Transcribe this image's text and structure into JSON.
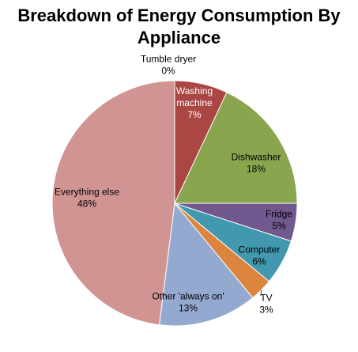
{
  "title_lines": [
    "Breakdown of Energy Consumption By",
    "Appliance"
  ],
  "chart_data": {
    "type": "pie",
    "title": "Breakdown of Energy Consumption By Appliance",
    "start_angle_deg": 0,
    "direction": "clockwise",
    "slices": [
      {
        "label": "Tumble dryer",
        "label_lines": [
          "Tumble dryer"
        ],
        "value_text": "0%",
        "value": 0,
        "color": "#4F81BD"
      },
      {
        "label": "Washing machine",
        "label_lines": [
          "Washing",
          "machine"
        ],
        "value_text": "7%",
        "value": 7,
        "color": "#AA4644"
      },
      {
        "label": "Dishwasher",
        "label_lines": [
          "Dishwasher"
        ],
        "value_text": "18%",
        "value": 18,
        "color": "#89A54E"
      },
      {
        "label": "Fridge",
        "label_lines": [
          "Fridge"
        ],
        "value_text": "5%",
        "value": 5,
        "color": "#71588F"
      },
      {
        "label": "Computer",
        "label_lines": [
          "Computer"
        ],
        "value_text": "6%",
        "value": 6,
        "color": "#4198AF"
      },
      {
        "label": "TV",
        "label_lines": [
          "TV"
        ],
        "value_text": "3%",
        "value": 3,
        "color": "#DB843D"
      },
      {
        "label": "Other 'always on'",
        "label_lines": [
          "Other 'always on'"
        ],
        "value_text": "13%",
        "value": 13,
        "color": "#93A9CF"
      },
      {
        "label": "Everything else",
        "label_lines": [
          "Everything else"
        ],
        "value_text": "48%",
        "value": 48,
        "color": "#D09493"
      }
    ]
  }
}
